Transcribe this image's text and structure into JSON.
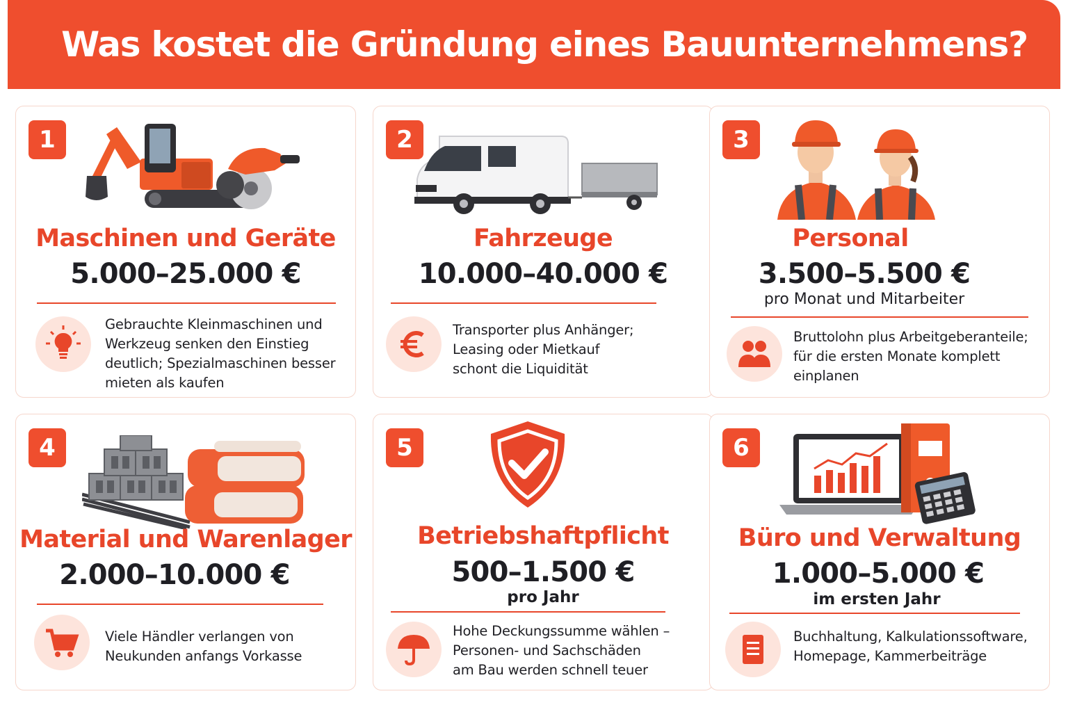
{
  "title": "Was kostet die Gründung eines Bauunternehmens?",
  "colors": {
    "accent": "#ef4e2e",
    "text": "#1f1f24",
    "icon_bg": "#fde4dc",
    "card_border": "#f6d6cc"
  },
  "cards": [
    {
      "number": "1",
      "title": "Maschinen und Geräte",
      "price": "5.000–25.000 €",
      "unit": "",
      "tip_lines": [
        "Gebrauchte Kleinmaschinen und",
        "Werkzeug senken den Einstieg",
        "deutlich; Spezialmaschinen besser",
        "mieten als kaufen"
      ],
      "tip_icon": "lightbulb-icon",
      "illustration": "excavator-and-circular-saw"
    },
    {
      "number": "2",
      "title": "Fahrzeuge",
      "price": "10.000–40.000 €",
      "unit": "",
      "tip_lines": [
        "Transporter plus Anhänger;",
        "Leasing oder Mietkauf",
        "schont die Liquidität"
      ],
      "tip_icon": "euro-icon",
      "illustration": "van-with-trailer"
    },
    {
      "number": "3",
      "title": "Personal",
      "price": "3.500–5.500 €",
      "unit": "pro Monat und Mitarbeiter",
      "tip_lines": [
        "Bruttolohn plus Arbeitgeberanteile;",
        "für die ersten Monate komplett",
        "einplanen"
      ],
      "tip_icon": "people-icon",
      "illustration": "two-construction-workers"
    },
    {
      "number": "4",
      "title": "Material und Warenlager",
      "price": "2.000–10.000 €",
      "unit": "",
      "tip_lines": [
        "Viele Händler verlangen von",
        "Neukunden anfangs Vorkasse"
      ],
      "tip_icon": "shopping-cart-icon",
      "illustration": "blocks-rebar-and-cement-bags"
    },
    {
      "number": "5",
      "title": "Betriebshaftpflicht",
      "price": "500–1.500 €",
      "unit": "pro Jahr",
      "tip_lines": [
        "Hohe Deckungssumme wählen –",
        "Personen- und Sachschäden",
        "am Bau werden schnell teuer"
      ],
      "tip_icon": "umbrella-icon",
      "illustration": "shield-check"
    },
    {
      "number": "6",
      "title": "Büro und Verwaltung",
      "price": "1.000–5.000 €",
      "unit": "im ersten Jahr",
      "tip_lines": [
        "Buchhaltung, Kalkulationssoftware,",
        "Homepage, Kammerbeiträge"
      ],
      "tip_icon": "document-icon",
      "illustration": "laptop-binder-calculator"
    }
  ]
}
